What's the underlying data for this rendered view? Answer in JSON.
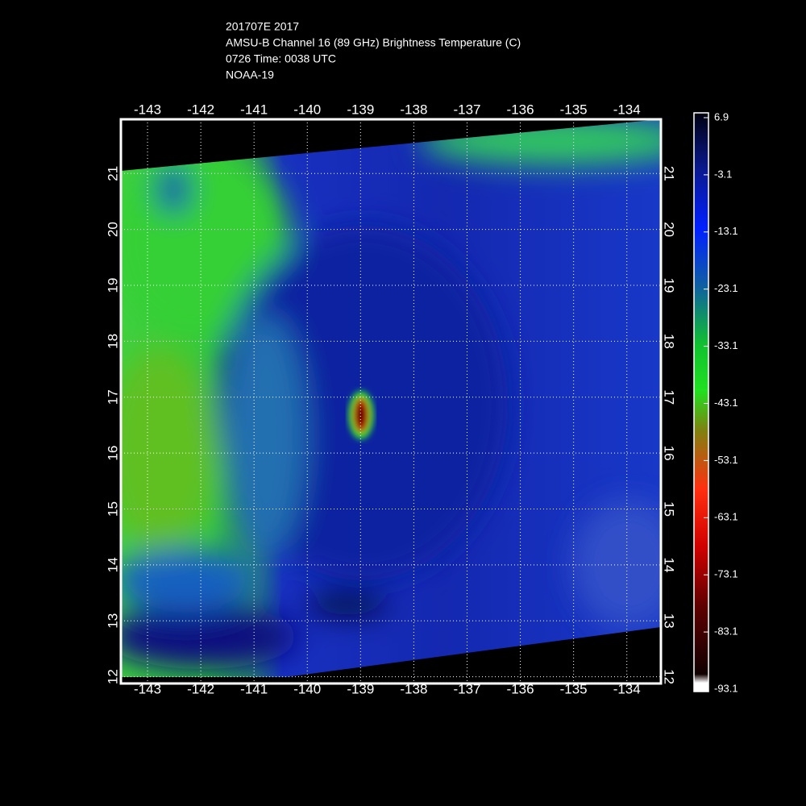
{
  "header": {
    "lines": [
      "201707E 2017",
      "AMSU-B Channel 16 (89 GHz) Brightness Temperature (C)",
      "0726 Time: 0038 UTC",
      "NOAA-19"
    ]
  },
  "map": {
    "xlim": [
      -143.5,
      -133.36
    ],
    "xticks": [
      -143,
      -142,
      -141,
      -140,
      -139,
      -138,
      -137,
      -136,
      -135,
      -134
    ],
    "ylim": [
      11.88,
      21.97
    ],
    "yticks": [
      12,
      13,
      14,
      15,
      16,
      17,
      18,
      19,
      20,
      21
    ],
    "grid": true
  },
  "colorbar": {
    "lim": [
      -93.1,
      6.9
    ],
    "ticks": [
      6.9,
      -3.1,
      -13.1,
      -23.1,
      -33.1,
      -43.1,
      -53.1,
      -63.1,
      -73.1,
      -83.1,
      -93.1
    ]
  }
}
